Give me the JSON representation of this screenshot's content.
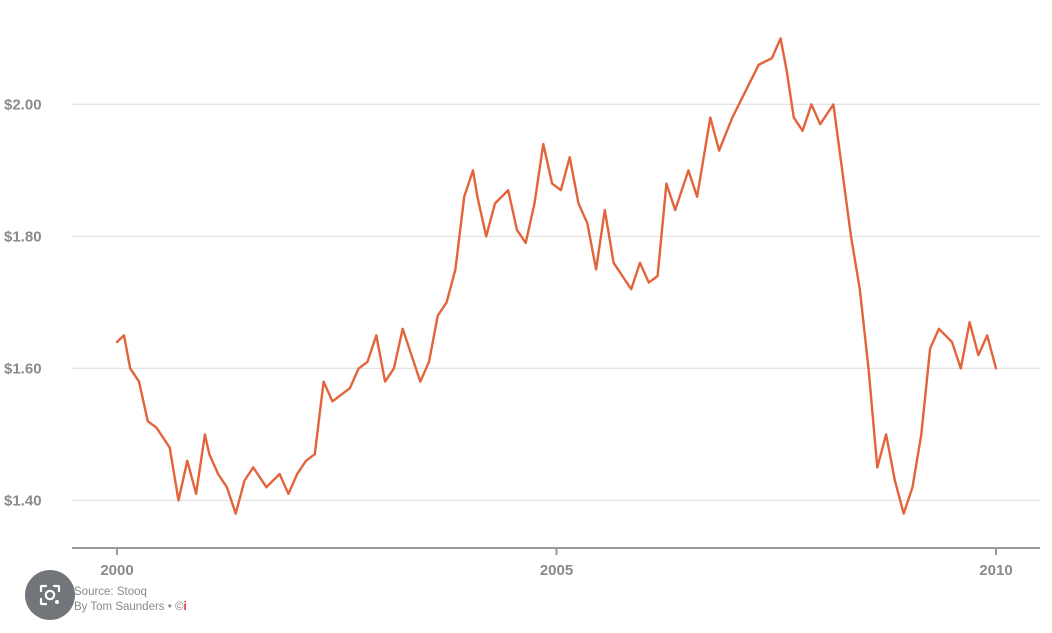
{
  "chart_data": {
    "type": "line",
    "title": "",
    "xlabel": "",
    "ylabel": "",
    "xlim": [
      2000.0,
      2010.0
    ],
    "ylim": [
      1.34,
      2.14
    ],
    "x_ticks": [
      2000,
      2005,
      2010
    ],
    "x_tick_labels": [
      "2000",
      "2005",
      "2010"
    ],
    "y_ticks": [
      1.4,
      1.6,
      1.8,
      2.0
    ],
    "y_tick_labels": [
      "$1.40",
      "$1.60",
      "$1.80",
      "$2.00"
    ],
    "grid": true,
    "legend": "none",
    "series": [
      {
        "color": "#e3643a",
        "x": [
          2000.0,
          2000.08,
          2000.15,
          2000.25,
          2000.35,
          2000.45,
          2000.6,
          2000.7,
          2000.8,
          2000.9,
          2001.0,
          2001.05,
          2001.15,
          2001.25,
          2001.35,
          2001.45,
          2001.55,
          2001.7,
          2001.85,
          2001.95,
          2002.05,
          2002.15,
          2002.25,
          2002.35,
          2002.45,
          2002.55,
          2002.65,
          2002.75,
          2002.85,
          2002.95,
          2003.05,
          2003.15,
          2003.25,
          2003.35,
          2003.45,
          2003.55,
          2003.65,
          2003.75,
          2003.85,
          2003.95,
          2004.05,
          2004.1,
          2004.2,
          2004.3,
          2004.45,
          2004.55,
          2004.65,
          2004.75,
          2004.85,
          2004.95,
          2005.05,
          2005.15,
          2005.25,
          2005.35,
          2005.45,
          2005.55,
          2005.65,
          2005.75,
          2005.85,
          2005.95,
          2006.05,
          2006.15,
          2006.25,
          2006.35,
          2006.5,
          2006.6,
          2006.75,
          2006.85,
          2007.0,
          2007.15,
          2007.3,
          2007.45,
          2007.55,
          2007.62,
          2007.7,
          2007.8,
          2007.9,
          2008.0,
          2008.1,
          2008.15,
          2008.25,
          2008.35,
          2008.45,
          2008.55,
          2008.65,
          2008.75,
          2008.85,
          2008.95,
          2009.05,
          2009.15,
          2009.25,
          2009.35,
          2009.5,
          2009.6,
          2009.7,
          2009.8,
          2009.9,
          2010.0
        ],
        "values": [
          1.64,
          1.65,
          1.6,
          1.58,
          1.52,
          1.51,
          1.48,
          1.4,
          1.46,
          1.41,
          1.5,
          1.47,
          1.44,
          1.42,
          1.38,
          1.43,
          1.45,
          1.42,
          1.44,
          1.41,
          1.44,
          1.46,
          1.47,
          1.58,
          1.55,
          1.56,
          1.57,
          1.6,
          1.61,
          1.65,
          1.58,
          1.6,
          1.66,
          1.62,
          1.58,
          1.61,
          1.68,
          1.7,
          1.75,
          1.86,
          1.9,
          1.86,
          1.8,
          1.85,
          1.87,
          1.81,
          1.79,
          1.85,
          1.94,
          1.88,
          1.87,
          1.92,
          1.85,
          1.82,
          1.75,
          1.84,
          1.76,
          1.74,
          1.72,
          1.76,
          1.73,
          1.74,
          1.88,
          1.84,
          1.9,
          1.86,
          1.98,
          1.93,
          1.98,
          2.02,
          2.06,
          2.07,
          2.1,
          2.05,
          1.98,
          1.96,
          2.0,
          1.97,
          1.99,
          2.0,
          1.9,
          1.8,
          1.72,
          1.6,
          1.45,
          1.5,
          1.43,
          1.38,
          1.42,
          1.5,
          1.63,
          1.66,
          1.64,
          1.6,
          1.67,
          1.62,
          1.65,
          1.6
        ]
      }
    ],
    "source_text": "Source: Stooq",
    "byline_text": "By Tom Saunders",
    "byline_suffix": "• ©",
    "info_glyph": "i"
  },
  "overlay": {
    "lens_icon": "lens-icon"
  }
}
